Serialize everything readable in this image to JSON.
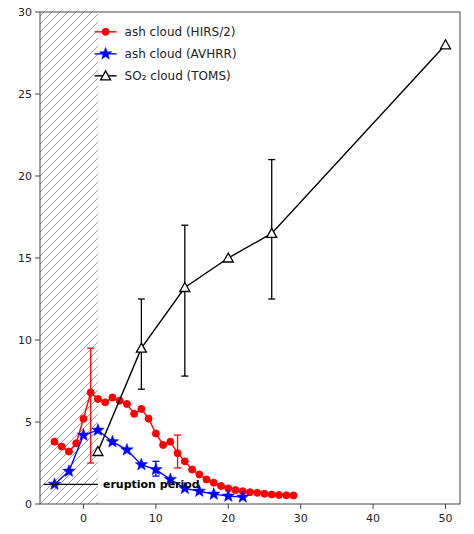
{
  "chart_data": {
    "type": "line",
    "series": [
      {
        "name": "ash cloud (HIRS/2)",
        "color": "red",
        "marker": "circle",
        "line_style": "solid",
        "x": [
          -4,
          -3,
          -2,
          -1,
          0,
          1,
          2,
          3,
          4,
          5,
          6,
          7,
          8,
          9,
          10,
          11,
          12,
          13,
          14,
          15,
          16,
          17,
          18,
          19,
          20,
          21,
          22,
          23,
          24,
          25,
          26,
          27,
          28,
          29
        ],
        "values": [
          3.8,
          3.5,
          3.2,
          3.7,
          5.2,
          6.8,
          6.4,
          6.2,
          6.5,
          6.3,
          6.1,
          5.5,
          5.8,
          5.2,
          4.3,
          3.6,
          3.8,
          3.1,
          2.6,
          2.1,
          1.8,
          1.5,
          1.3,
          1.1,
          0.95,
          0.85,
          0.78,
          0.72,
          0.68,
          0.62,
          0.58,
          0.55,
          0.53,
          0.52
        ],
        "errors": {
          "x": [
            1,
            13
          ],
          "low": [
            2.5,
            2.2
          ],
          "high": [
            9.5,
            4.2
          ]
        }
      },
      {
        "name": "ash cloud (AVHRR)",
        "color": "blue",
        "marker": "star",
        "line_style": "solid",
        "x": [
          -4,
          -2,
          0,
          2,
          4,
          6,
          8,
          10,
          12,
          14,
          16,
          18,
          20,
          22
        ],
        "values": [
          1.2,
          2.0,
          4.2,
          4.5,
          3.8,
          3.3,
          2.4,
          2.1,
          1.5,
          0.95,
          0.78,
          0.6,
          0.48,
          0.42
        ],
        "errors": {
          "x": [
            10
          ],
          "low": [
            1.7
          ],
          "high": [
            2.6
          ]
        }
      },
      {
        "name": "SO₂ cloud (TOMS)",
        "color": "black",
        "marker": "triangle",
        "line_style": "solid",
        "x": [
          2,
          8,
          14,
          20,
          26,
          50
        ],
        "values": [
          3.2,
          9.5,
          13.2,
          15.0,
          16.5,
          28.0
        ],
        "errors": {
          "x": [
            8,
            14,
            26
          ],
          "low": [
            7.0,
            7.8,
            12.5
          ],
          "high": [
            12.5,
            17.0,
            21.0
          ]
        }
      }
    ],
    "xlim": [
      -6,
      52
    ],
    "xticks": [
      0,
      10,
      20,
      30,
      40,
      50
    ],
    "ylim": [
      0,
      30
    ],
    "yticks": [
      0,
      5,
      10,
      15,
      20,
      25,
      30
    ],
    "annotations": [
      {
        "text": "eruption period",
        "x": 2,
        "y": 1.2,
        "hatch": true
      }
    ],
    "legend": "upper left",
    "grid": false
  }
}
